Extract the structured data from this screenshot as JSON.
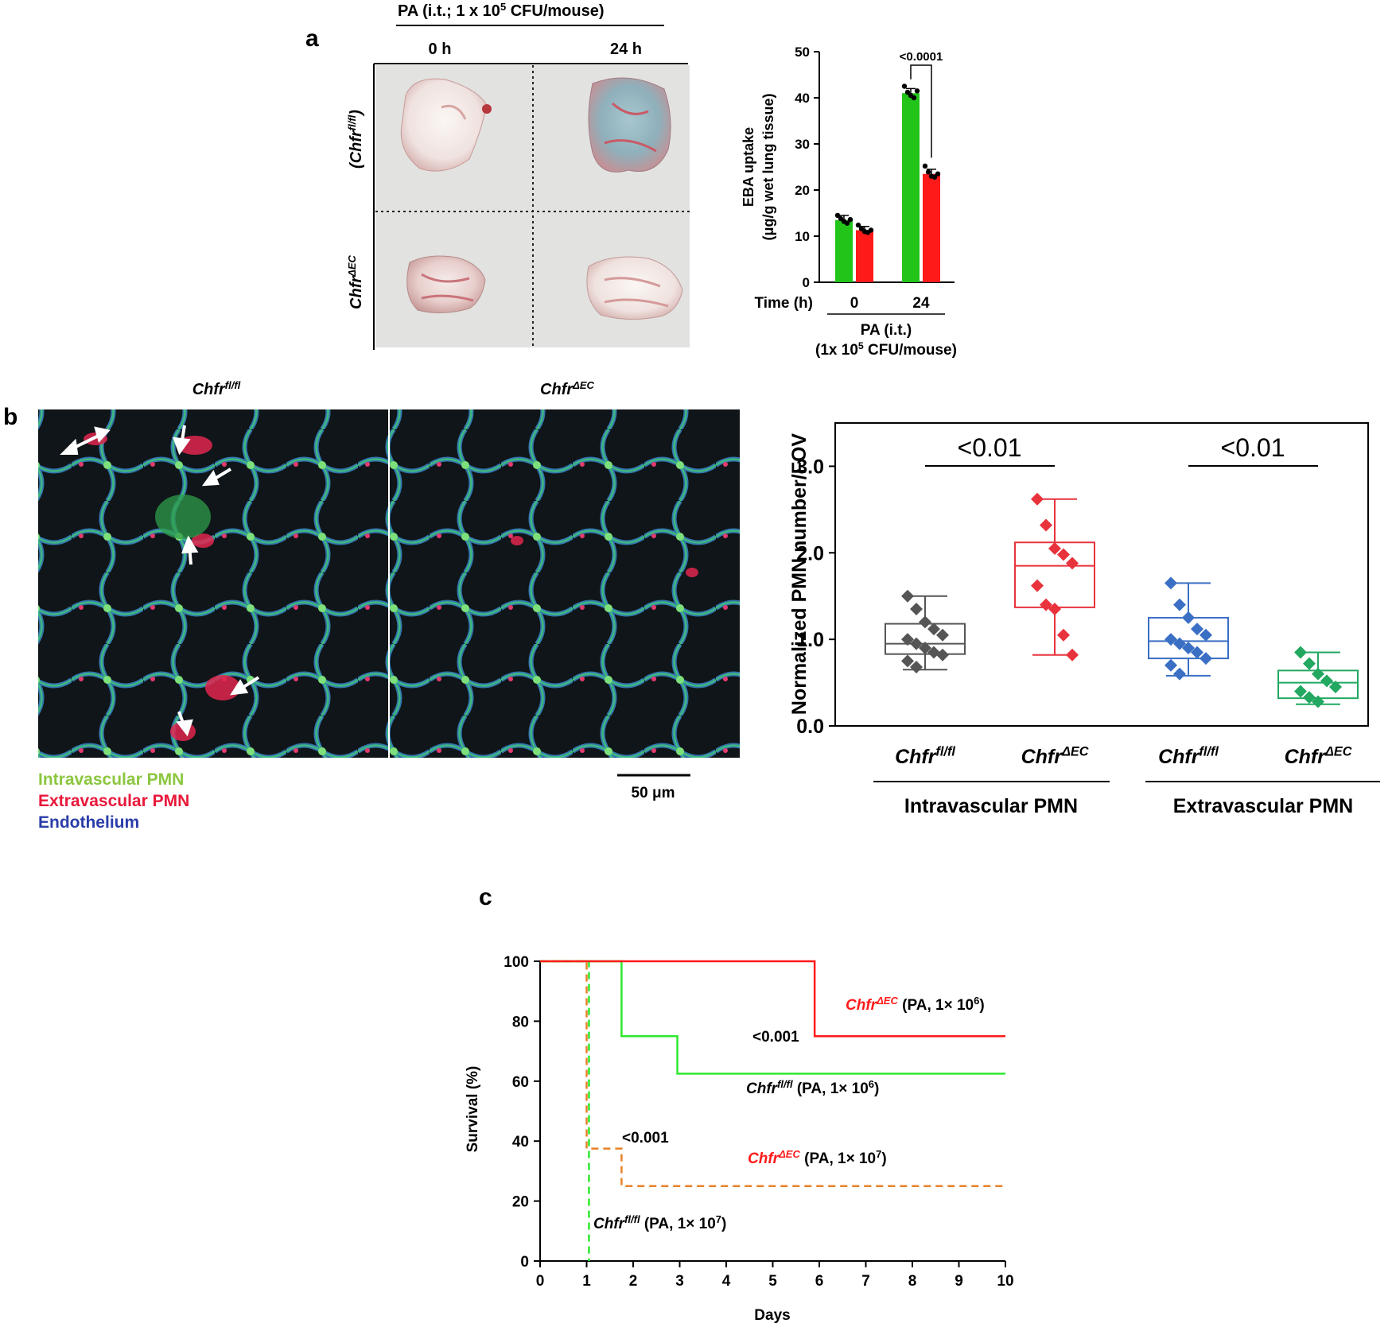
{
  "colors": {
    "green": "#22c41a",
    "red": "#ff1a1a",
    "orange": "#e8822a",
    "lime": "#2ee82e",
    "gray": "#555555",
    "blue": "#3a6fc4",
    "teal": "#22a860",
    "redbox": "#e8323c"
  },
  "panel_a": {
    "letter": "a",
    "treatment": "PA (i.t.; 1 x 10",
    "treatment_sup": "5",
    "treatment_end": " CFU/mouse)",
    "col_0h": "0 h",
    "col_24h": "24 h",
    "row_flfl_base": "(Chfr",
    "row_flfl_sup": "fl/fl",
    "row_flfl_end": ")",
    "row_dec_base": "Chfr",
    "row_dec_sup": "ΔEC"
  },
  "panel_b": {
    "letter": "b",
    "img1_title_base": "Chfr",
    "img1_title_sup": "fl/fl",
    "img2_title_base": "Chfr",
    "img2_title_sup": "ΔEC",
    "legend_intra": "Intravascular PMN",
    "legend_extra": "Extravascular PMN",
    "legend_endo": "Endothelium",
    "scale_bar": "50 μm"
  },
  "panel_c": {
    "letter": "c"
  },
  "chart_data": [
    {
      "type": "bar",
      "ylabel_line1": "EBA uptake",
      "ylabel_line2": "(μg/g wet lung tissue)",
      "ylim": [
        0,
        50
      ],
      "yticks": [
        0,
        10,
        20,
        30,
        40,
        50
      ],
      "x_title": "Time (h)",
      "categories": [
        "0",
        "24"
      ],
      "group_line1": "PA (i.t.)",
      "group_line2_base": "(1x 10",
      "group_line2_sup": "5",
      "group_line2_end": " CFU/mouse)",
      "series": [
        {
          "color_key": "green",
          "values": [
            13.5,
            41.0
          ],
          "errors": [
            1.0,
            1.0
          ],
          "points": [
            [
              14.5,
              13.8,
              13.2,
              12.8,
              13.6
            ],
            [
              42.5,
              41.2,
              40.5,
              40.0,
              41.5
            ]
          ]
        },
        {
          "color_key": "red",
          "values": [
            11.3,
            23.5
          ],
          "errors": [
            0.8,
            1.0
          ],
          "points": [
            [
              12.4,
              11.6,
              11.0,
              10.8,
              11.3
            ],
            [
              25.2,
              23.9,
              23.0,
              22.8,
              23.5
            ]
          ]
        }
      ],
      "annotation": "<0.0001"
    },
    {
      "type": "box",
      "ylabel": "Normalized PMN number/FOV",
      "ylim": [
        0,
        3.5
      ],
      "yticks": [
        "0.0",
        "1.0",
        "2.0",
        "3.0"
      ],
      "groups": [
        {
          "label_base": "Chfr",
          "label_sup": "fl/fl",
          "color_key": "gray",
          "min": 0.65,
          "q1": 0.83,
          "median": 0.95,
          "q3": 1.18,
          "max": 1.5,
          "points": [
            1.5,
            1.35,
            1.2,
            1.12,
            1.05,
            1.0,
            0.95,
            0.9,
            0.85,
            0.82,
            0.75,
            0.68
          ]
        },
        {
          "label_base": "Chfr",
          "label_sup": "ΔEC",
          "color_key": "redbox",
          "min": 0.82,
          "q1": 1.37,
          "median": 1.85,
          "q3": 2.12,
          "max": 2.62,
          "points": [
            2.62,
            2.32,
            2.05,
            1.98,
            1.88,
            1.62,
            1.4,
            1.35,
            1.05,
            0.82
          ]
        },
        {
          "label_base": "Chfr",
          "label_sup": "fl/fl",
          "color_key": "blue",
          "min": 0.58,
          "q1": 0.78,
          "median": 0.98,
          "q3": 1.25,
          "max": 1.65,
          "points": [
            1.65,
            1.4,
            1.25,
            1.12,
            1.05,
            1.0,
            0.95,
            0.9,
            0.85,
            0.78,
            0.7,
            0.6
          ]
        },
        {
          "label_base": "Chfr",
          "label_sup": "ΔEC",
          "color_key": "teal",
          "min": 0.25,
          "q1": 0.32,
          "median": 0.5,
          "q3": 0.64,
          "max": 0.85,
          "points": [
            0.85,
            0.72,
            0.6,
            0.52,
            0.45,
            0.4,
            0.33,
            0.28
          ]
        }
      ],
      "category_intra": "Intravascular PMN",
      "category_extra": "Extravascular PMN",
      "p_intra": "<0.01",
      "p_extra": "<0.01"
    },
    {
      "type": "line",
      "ylabel": "Survival (%)",
      "xlabel": "Days",
      "xlim": [
        0,
        10
      ],
      "ylim": [
        0,
        100
      ],
      "xticks": [
        "0",
        "1",
        "2",
        "3",
        "4",
        "5",
        "6",
        "7",
        "8",
        "9",
        "10"
      ],
      "yticks": [
        "0",
        "20",
        "40",
        "60",
        "80",
        "100"
      ],
      "series": [
        {
          "label_base": "Chfr",
          "label_sup": "ΔEC",
          "label_tail": " (PA, 1× 10",
          "label_exp": "6",
          "label_end": ")",
          "color_key": "red",
          "dashed": false,
          "steps": [
            [
              0,
              100
            ],
            [
              5.9,
              100
            ],
            [
              5.9,
              75
            ],
            [
              10,
              75
            ]
          ]
        },
        {
          "label_base": "Chfr",
          "label_sup": "fl/fl",
          "label_tail": " (PA, 1× 10",
          "label_exp": "6",
          "label_end": ")",
          "color_key": "lime",
          "dashed": false,
          "steps": [
            [
              0,
              100
            ],
            [
              1.75,
              100
            ],
            [
              1.75,
              75
            ],
            [
              2.95,
              75
            ],
            [
              2.95,
              62.5
            ],
            [
              10,
              62.5
            ]
          ]
        },
        {
          "label_base": "Chfr",
          "label_sup": "ΔEC",
          "label_tail": " (PA, 1× 10",
          "label_exp": "7",
          "label_end": ")",
          "color_key": "orange",
          "dashed": true,
          "steps": [
            [
              0,
              100
            ],
            [
              1.0,
              100
            ],
            [
              1.0,
              37.5
            ],
            [
              1.75,
              37.5
            ],
            [
              1.75,
              25
            ],
            [
              10,
              25
            ]
          ]
        },
        {
          "label_base": "Chfr",
          "label_sup": "fl/fl",
          "label_tail": " (PA, 1× 10",
          "label_exp": "7",
          "label_end": ")",
          "color_key": "lime",
          "dashed": true,
          "steps": [
            [
              0,
              100
            ],
            [
              1.05,
              100
            ],
            [
              1.05,
              0
            ]
          ]
        }
      ],
      "p_top": "<0.001",
      "p_bottom": "<0.001"
    }
  ]
}
